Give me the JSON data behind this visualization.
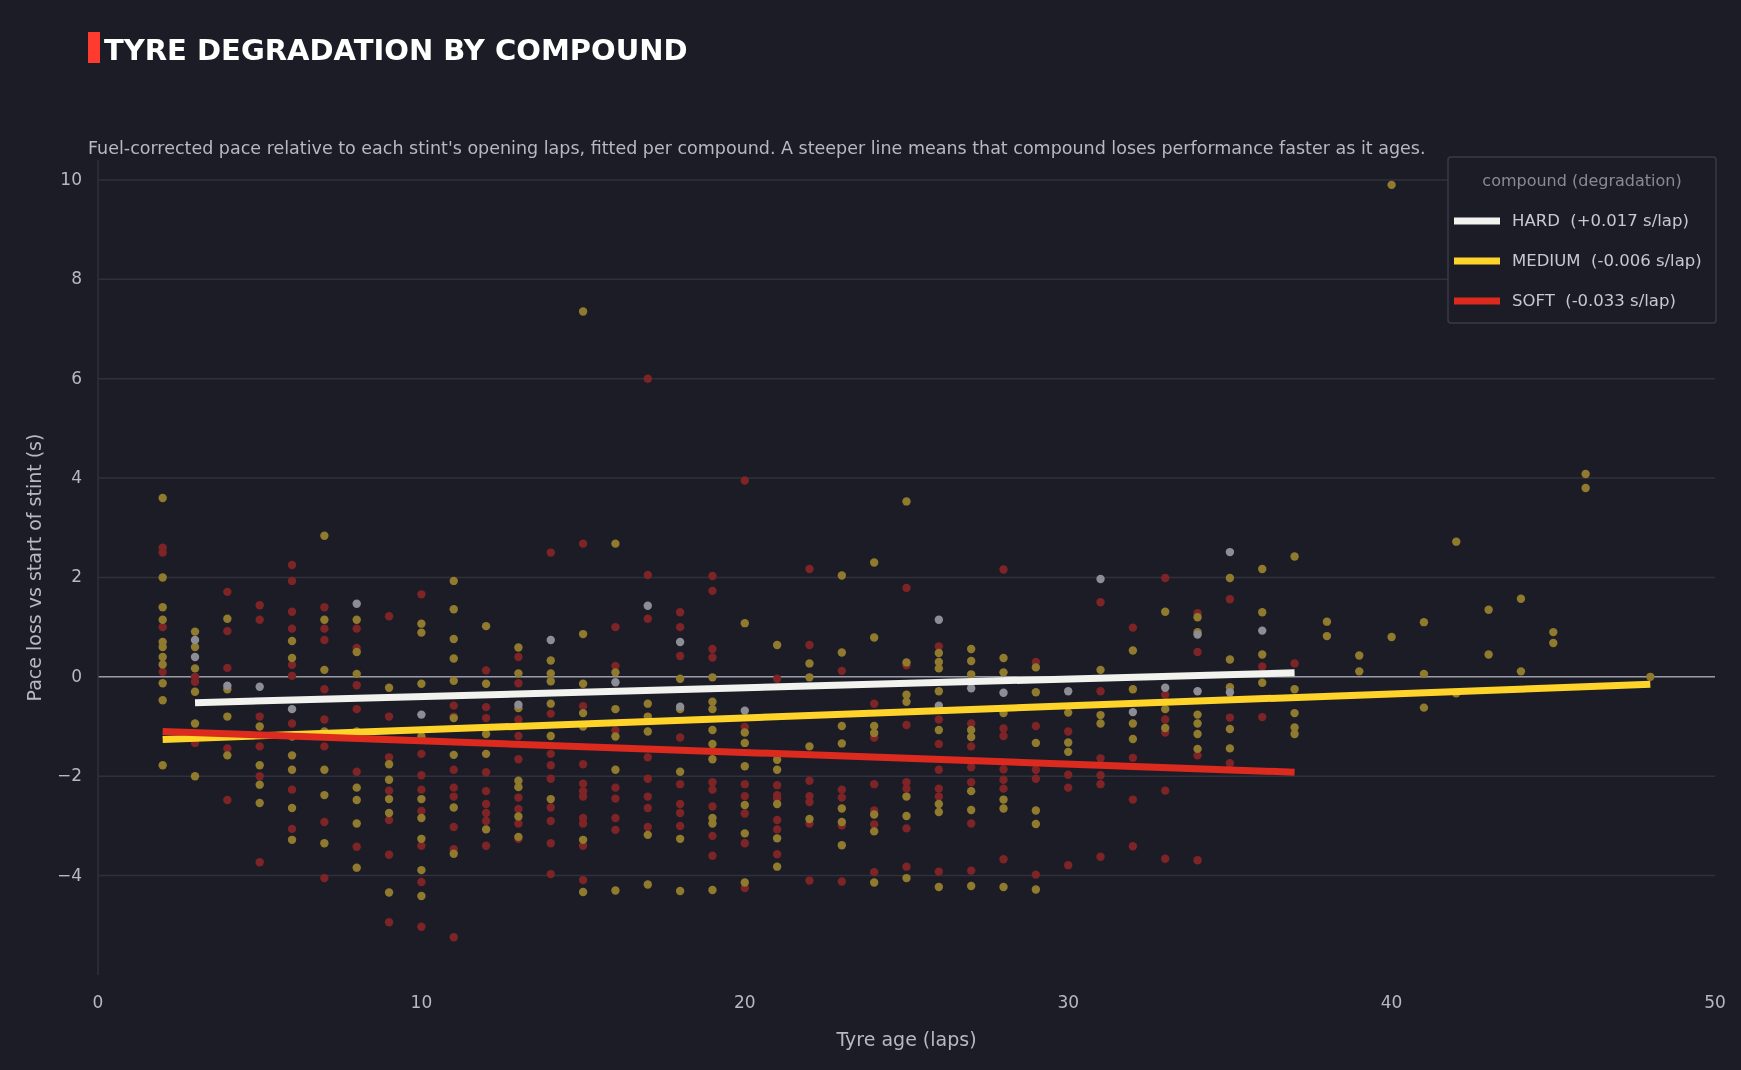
{
  "chart_data": {
    "type": "scatter",
    "title": "TYRE DEGRADATION BY COMPOUND",
    "subtitle": "Fuel-corrected pace relative to each stint's opening laps, fitted per compound. A steeper line means that compound loses performance faster as it ages.",
    "xlabel": "Tyre age (laps)",
    "ylabel": "Pace loss vs start of stint (s)",
    "legend_title": "compound (degradation)",
    "legend": "top right",
    "grid": "y",
    "xlim": [
      0,
      50
    ],
    "xticks": [
      0,
      10,
      20,
      30,
      40,
      50
    ],
    "ylim": [
      -6,
      10.4
    ],
    "yticks": [
      {
        "value": -4,
        "label": "−4"
      },
      {
        "value": -2,
        "label": "−2"
      },
      0,
      2,
      4,
      6,
      8,
      10
    ],
    "ref_lines": [
      {
        "axis": "y",
        "value": 0,
        "color": "#9a9aa4"
      }
    ],
    "series": [
      {
        "marker": "circle",
        "color": "#7e2427",
        "x": [
          2,
          2,
          2,
          2,
          3,
          3,
          3,
          4,
          4,
          4,
          4,
          4,
          5,
          5,
          5,
          5,
          5,
          5,
          6,
          6,
          6,
          6,
          6,
          6,
          6,
          6,
          6,
          7,
          7,
          7,
          7,
          7,
          7,
          7,
          7,
          8,
          8,
          8,
          8,
          8,
          8,
          9,
          9,
          9,
          9,
          9,
          9,
          9,
          10,
          10,
          10,
          10,
          10,
          10,
          10,
          10,
          11,
          11,
          11,
          11,
          11,
          11,
          11,
          11,
          12,
          12,
          12,
          12,
          12,
          12,
          12,
          12,
          12,
          13,
          13,
          13,
          13,
          13,
          13,
          13,
          13,
          13,
          14,
          14,
          14,
          14,
          14,
          14,
          14,
          14,
          14,
          15,
          15,
          15,
          15,
          15,
          15,
          15,
          15,
          15,
          15,
          16,
          16,
          16,
          16,
          16,
          16,
          16,
          17,
          17,
          17,
          17,
          17,
          17,
          17,
          17,
          18,
          18,
          18,
          18,
          18,
          18,
          18,
          18,
          19,
          19,
          19,
          19,
          19,
          19,
          19,
          19,
          19,
          20,
          20,
          20,
          20,
          20,
          20,
          20,
          21,
          21,
          21,
          21,
          21,
          21,
          21,
          22,
          22,
          22,
          22,
          22,
          22,
          22,
          23,
          23,
          23,
          23,
          23,
          24,
          24,
          24,
          24,
          24,
          24,
          25,
          25,
          25,
          25,
          25,
          25,
          25,
          26,
          26,
          26,
          26,
          26,
          26,
          26,
          27,
          27,
          27,
          27,
          27,
          27,
          28,
          28,
          28,
          28,
          28,
          28,
          28,
          29,
          29,
          29,
          29,
          29,
          30,
          30,
          30,
          30,
          31,
          31,
          31,
          31,
          31,
          31,
          32,
          32,
          32,
          32,
          33,
          33,
          33,
          33,
          33,
          33,
          34,
          34,
          34,
          34,
          35,
          35,
          35,
          36,
          36,
          37
        ],
        "values": [
          2.6,
          2.5,
          1.0,
          0.1,
          -0.1,
          0.0,
          -1.33,
          1.71,
          0.92,
          0.18,
          -1.44,
          -2.48,
          1.44,
          1.15,
          -0.8,
          -1.4,
          -2.0,
          -3.73,
          2.25,
          1.93,
          1.31,
          0.97,
          0.24,
          0.02,
          -0.94,
          -2.27,
          -3.06,
          1.4,
          0.97,
          0.74,
          -0.25,
          -0.86,
          -1.4,
          -2.92,
          -4.05,
          0.97,
          0.58,
          -0.17,
          -0.65,
          -1.91,
          -3.42,
          1.22,
          -0.8,
          -1.62,
          -2.29,
          -2.88,
          -3.58,
          -4.94,
          1.66,
          -1.55,
          -1.98,
          -2.27,
          -2.7,
          -3.4,
          -4.13,
          -5.03,
          -0.58,
          -0.8,
          -1.87,
          -2.23,
          -2.41,
          -3.02,
          -3.47,
          -5.24,
          0.13,
          -0.61,
          -0.83,
          -1.92,
          -2.3,
          -2.56,
          -2.74,
          -2.9,
          -3.4,
          0.4,
          -0.13,
          -0.86,
          -1.19,
          -1.66,
          -2.43,
          -2.66,
          -2.95,
          -3.26,
          2.5,
          -0.74,
          -1.55,
          -1.78,
          -2.05,
          -2.63,
          -2.9,
          -3.35,
          -3.97,
          2.68,
          -0.59,
          -1.76,
          -2.15,
          -2.3,
          -2.41,
          -2.84,
          -2.95,
          -3.4,
          -4.09,
          1.0,
          0.22,
          -1.08,
          -2.23,
          -2.45,
          -2.84,
          -3.08,
          6.0,
          2.05,
          1.17,
          -1.62,
          -2.05,
          -2.41,
          -2.64,
          -3.02,
          1.3,
          1.0,
          0.42,
          -1.22,
          -2.16,
          -2.56,
          -2.74,
          -3.0,
          2.03,
          1.73,
          0.56,
          0.39,
          -2.12,
          -2.27,
          -2.61,
          -3.2,
          -3.6,
          3.95,
          -1.01,
          -2.16,
          -2.4,
          -2.75,
          -3.35,
          -4.25,
          -0.04,
          -2.18,
          -2.38,
          -2.45,
          -2.88,
          -3.07,
          -3.57,
          2.17,
          0.64,
          -2.09,
          -2.4,
          -2.52,
          -2.95,
          -4.1,
          0.12,
          -2.27,
          -2.43,
          -2.99,
          -4.12,
          -0.54,
          -1.22,
          -2.16,
          -2.69,
          -2.97,
          -3.93,
          1.79,
          0.23,
          -0.97,
          -2.12,
          -2.25,
          -3.05,
          -3.82,
          0.61,
          -0.86,
          -1.35,
          -1.87,
          -2.25,
          -2.41,
          -3.92,
          -0.94,
          -1.4,
          -1.82,
          -2.12,
          -2.95,
          -3.9,
          2.16,
          -1.04,
          -1.19,
          -1.86,
          -2.07,
          -2.25,
          -3.67,
          0.3,
          -0.99,
          -1.87,
          -2.05,
          -3.98,
          -1.1,
          -1.97,
          -2.23,
          -3.79,
          1.5,
          -0.29,
          -1.64,
          -1.98,
          -2.16,
          -3.62,
          0.99,
          -1.63,
          -2.47,
          -3.41,
          1.99,
          -0.36,
          -0.86,
          -1.12,
          -2.29,
          -3.66,
          1.28,
          0.5,
          -1.58,
          -3.69,
          1.56,
          -0.82,
          -1.74,
          0.21,
          -0.81,
          0.27
        ]
      },
      {
        "marker": "circle",
        "color": "#8f7a2e",
        "x": [
          2,
          2,
          2,
          2,
          2,
          2,
          2,
          2,
          2,
          2,
          2,
          3,
          3,
          3,
          3,
          3,
          3,
          4,
          4,
          4,
          4,
          5,
          5,
          5,
          5,
          6,
          6,
          6,
          6,
          6,
          6,
          6,
          7,
          7,
          7,
          7,
          7,
          7,
          7,
          8,
          8,
          8,
          8,
          8,
          8,
          8,
          8,
          9,
          9,
          9,
          9,
          9,
          9,
          10,
          10,
          10,
          10,
          10,
          10,
          10,
          10,
          10,
          11,
          11,
          11,
          11,
          11,
          11,
          11,
          11,
          11,
          12,
          12,
          12,
          12,
          12,
          13,
          13,
          13,
          13,
          13,
          13,
          13,
          14,
          14,
          14,
          14,
          14,
          14,
          15,
          15,
          15,
          15,
          15,
          15,
          15,
          16,
          16,
          16,
          16,
          16,
          16,
          17,
          17,
          17,
          17,
          17,
          18,
          18,
          18,
          18,
          18,
          19,
          19,
          19,
          19,
          19,
          19,
          19,
          19,
          19,
          20,
          20,
          20,
          20,
          20,
          20,
          20,
          21,
          21,
          21,
          21,
          21,
          21,
          22,
          22,
          22,
          22,
          23,
          23,
          23,
          23,
          23,
          23,
          23,
          24,
          24,
          24,
          24,
          24,
          24,
          24,
          25,
          25,
          25,
          25,
          25,
          25,
          25,
          26,
          26,
          26,
          26,
          26,
          26,
          26,
          26,
          27,
          27,
          27,
          27,
          27,
          27,
          27,
          27,
          28,
          28,
          28,
          28,
          28,
          28,
          29,
          29,
          29,
          29,
          29,
          29,
          30,
          30,
          30,
          31,
          31,
          31,
          32,
          32,
          32,
          32,
          33,
          33,
          33,
          34,
          34,
          34,
          34,
          34,
          34,
          35,
          35,
          35,
          35,
          35,
          36,
          36,
          36,
          36,
          37,
          37,
          37,
          37,
          37,
          38,
          38,
          39,
          39,
          40,
          40,
          41,
          41,
          41,
          42,
          42,
          43,
          43,
          44,
          44,
          45,
          45,
          46,
          46,
          48
        ],
        "values": [
          3.6,
          2.0,
          1.4,
          1.15,
          0.7,
          0.6,
          0.4,
          0.25,
          -0.13,
          -0.47,
          -1.78,
          0.91,
          0.6,
          0.17,
          -0.3,
          -0.94,
          -2.0,
          1.17,
          -0.25,
          -0.8,
          -1.58,
          -1.0,
          -1.78,
          -2.17,
          -2.54,
          0.72,
          0.38,
          -1.2,
          -1.58,
          -1.87,
          -2.64,
          -3.28,
          2.84,
          1.15,
          0.14,
          -1.1,
          -1.87,
          -2.38,
          -3.35,
          1.15,
          0.5,
          0.06,
          -1.1,
          -2.23,
          -2.48,
          -2.95,
          -3.84,
          -0.22,
          -1.76,
          -2.07,
          -2.46,
          -2.74,
          -4.34,
          1.07,
          0.89,
          -0.14,
          -1.2,
          -2.46,
          -2.84,
          -3.26,
          -3.89,
          -4.41,
          1.93,
          1.36,
          0.76,
          0.37,
          -0.08,
          -0.83,
          -1.57,
          -2.63,
          -3.56,
          1.02,
          -0.14,
          -1.15,
          -1.55,
          -3.07,
          0.59,
          0.07,
          -0.63,
          -2.09,
          -2.22,
          -2.81,
          -3.22,
          0.33,
          0.07,
          -0.09,
          -0.54,
          -1.19,
          -2.46,
          7.35,
          0.86,
          -0.14,
          -0.73,
          -1.0,
          -3.28,
          -4.33,
          2.68,
          0.09,
          -0.65,
          -1.2,
          -1.87,
          -4.3,
          -0.54,
          -0.8,
          -1.1,
          -3.18,
          -4.18,
          -0.04,
          -0.65,
          -1.91,
          -3.26,
          -4.31,
          -0.01,
          -0.5,
          -0.65,
          -1.07,
          -1.35,
          -1.66,
          -2.84,
          -2.95,
          -4.29,
          1.08,
          -1.12,
          -1.33,
          -1.8,
          -2.58,
          -3.15,
          -4.14,
          0.64,
          -1.67,
          -1.87,
          -2.56,
          -3.25,
          -3.82,
          0.27,
          -0.01,
          -1.4,
          -2.86,
          2.04,
          0.49,
          -0.99,
          -1.34,
          -2.65,
          -2.92,
          -3.39,
          2.3,
          0.79,
          -0.99,
          -1.13,
          -2.77,
          -3.11,
          -4.14,
          3.53,
          0.29,
          -0.36,
          -0.5,
          -2.41,
          -2.8,
          -4.05,
          0.48,
          0.3,
          0.17,
          -0.29,
          -1.07,
          -2.56,
          -2.72,
          -4.23,
          0.56,
          0.32,
          0.05,
          -1.07,
          -1.21,
          -2.3,
          -2.68,
          -4.21,
          0.38,
          0.09,
          -0.73,
          -2.47,
          -2.65,
          -4.23,
          0.19,
          -0.31,
          -1.33,
          -2.69,
          -2.96,
          -4.28,
          -0.72,
          -1.32,
          -1.51,
          0.14,
          -0.77,
          -0.94,
          0.53,
          -0.25,
          -0.94,
          -1.25,
          1.31,
          -0.65,
          -1.03,
          1.2,
          0.9,
          -0.76,
          -0.94,
          -1.15,
          -1.45,
          1.99,
          0.35,
          -0.21,
          -1.05,
          -1.44,
          2.17,
          1.3,
          0.45,
          -0.12,
          2.42,
          -0.25,
          -0.73,
          -1.02,
          -1.15,
          1.11,
          0.82,
          0.43,
          0.11,
          9.9,
          0.8,
          1.1,
          0.06,
          -0.62,
          2.72,
          -0.33,
          1.35,
          0.45,
          1.57,
          0.11,
          0.9,
          0.68,
          4.08,
          3.8,
          0.0
        ]
      },
      {
        "marker": "circle",
        "color": "#8d8d95",
        "x": [
          3,
          3,
          4,
          5,
          6,
          8,
          10,
          13,
          14,
          16,
          17,
          18,
          18,
          20,
          26,
          26,
          27,
          28,
          30,
          31,
          32,
          33,
          34,
          34,
          35,
          35,
          36
        ],
        "values": [
          0.74,
          0.4,
          -0.18,
          -0.2,
          -0.65,
          1.47,
          -0.76,
          -0.56,
          0.74,
          -0.11,
          1.43,
          0.7,
          -0.6,
          -0.68,
          1.15,
          -0.58,
          -0.23,
          -0.32,
          -0.29,
          1.97,
          -0.71,
          -0.22,
          0.85,
          -0.29,
          2.51,
          -0.31,
          0.93
        ]
      },
      {
        "type": "line",
        "name": "HARD  (+0.017 s/lap)",
        "color": "#f2f2ee",
        "line_style": "solid",
        "x": [
          3,
          37
        ],
        "values": [
          -0.52,
          0.08
        ]
      },
      {
        "type": "line",
        "name": "MEDIUM  (-0.006 s/lap)",
        "color": "#ffd42a",
        "line_style": "solid",
        "x": [
          2,
          48
        ],
        "values": [
          -1.26,
          -0.15
        ]
      },
      {
        "type": "line",
        "name": "SOFT  (-0.033 s/lap)",
        "color": "#dc2a1e",
        "line_style": "solid",
        "x": [
          2,
          37
        ],
        "values": [
          -1.1,
          -1.92
        ]
      }
    ]
  }
}
